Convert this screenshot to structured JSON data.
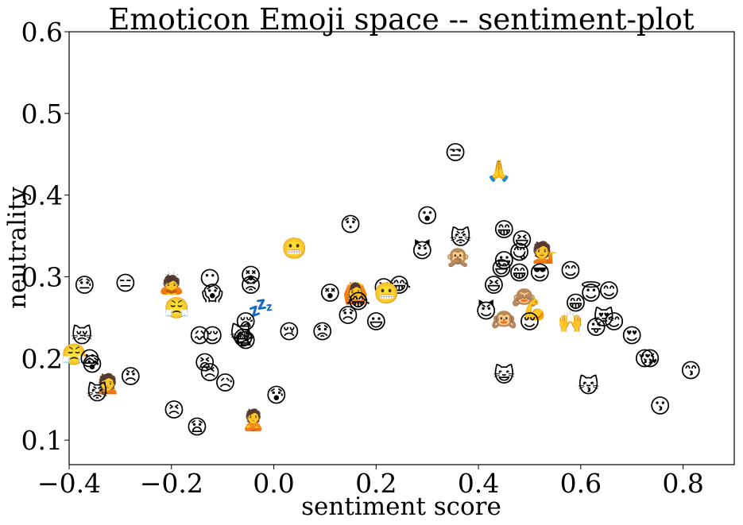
{
  "chart_data": {
    "type": "scatter",
    "title": "Emoticon Emoji space -- sentiment-plot",
    "xlabel": "sentiment score",
    "ylabel": "neutrality",
    "xlim": [
      -0.4,
      0.9
    ],
    "ylim": [
      0.07,
      0.6
    ],
    "xticks": [
      -0.4,
      -0.2,
      0.0,
      0.2,
      0.4,
      0.6,
      0.8
    ],
    "xtick_labels": [
      "−0.4",
      "−0.2",
      "0.0",
      "0.2",
      "0.4",
      "0.6",
      "0.8"
    ],
    "yticks": [
      0.1,
      0.2,
      0.3,
      0.4,
      0.5,
      0.6
    ],
    "ytick_labels": [
      "0.1",
      "0.2",
      "0.3",
      "0.4",
      "0.5",
      "0.6"
    ],
    "grid": false,
    "marker": "emoji",
    "points": [
      {
        "x": 0.355,
        "y": 0.452,
        "m": "😒"
      },
      {
        "x": 0.44,
        "y": 0.43,
        "m": "🙏"
      },
      {
        "x": 0.3,
        "y": 0.375,
        "m": "😮"
      },
      {
        "x": 0.15,
        "y": 0.364,
        "m": "😯"
      },
      {
        "x": 0.45,
        "y": 0.358,
        "m": "😁"
      },
      {
        "x": 0.485,
        "y": 0.345,
        "m": "😆"
      },
      {
        "x": 0.365,
        "y": 0.348,
        "m": "😾"
      },
      {
        "x": 0.04,
        "y": 0.335,
        "m": "😬"
      },
      {
        "x": 0.29,
        "y": 0.332,
        "m": "😈"
      },
      {
        "x": 0.48,
        "y": 0.33,
        "m": "😋"
      },
      {
        "x": 0.53,
        "y": 0.33,
        "m": "💁"
      },
      {
        "x": 0.36,
        "y": 0.325,
        "m": "🙊"
      },
      {
        "x": 0.45,
        "y": 0.32,
        "m": "😃"
      },
      {
        "x": 0.445,
        "y": 0.31,
        "m": "😄"
      },
      {
        "x": 0.58,
        "y": 0.308,
        "m": "😊"
      },
      {
        "x": 0.48,
        "y": 0.305,
        "m": "😁"
      },
      {
        "x": 0.52,
        "y": 0.305,
        "m": "😎"
      },
      {
        "x": -0.045,
        "y": 0.302,
        "m": "😵"
      },
      {
        "x": -0.125,
        "y": 0.298,
        "m": "😶"
      },
      {
        "x": -0.29,
        "y": 0.292,
        "m": "😑"
      },
      {
        "x": -0.37,
        "y": 0.29,
        "m": "😓"
      },
      {
        "x": -0.2,
        "y": 0.292,
        "m": "🙇"
      },
      {
        "x": -0.045,
        "y": 0.29,
        "m": "😟"
      },
      {
        "x": 0.245,
        "y": 0.29,
        "m": "😂"
      },
      {
        "x": 0.215,
        "y": 0.287,
        "m": "😆"
      },
      {
        "x": 0.43,
        "y": 0.29,
        "m": "😆"
      },
      {
        "x": 0.22,
        "y": 0.28,
        "m": "😬"
      },
      {
        "x": -0.12,
        "y": 0.28,
        "m": "😱"
      },
      {
        "x": 0.11,
        "y": 0.28,
        "m": "😵"
      },
      {
        "x": 0.16,
        "y": 0.28,
        "m": "🙆"
      },
      {
        "x": 0.62,
        "y": 0.28,
        "m": "😇"
      },
      {
        "x": 0.655,
        "y": 0.283,
        "m": "😊"
      },
      {
        "x": 0.49,
        "y": 0.275,
        "m": "🙈"
      },
      {
        "x": 0.59,
        "y": 0.268,
        "m": "😁"
      },
      {
        "x": 0.165,
        "y": 0.27,
        "m": "😂"
      },
      {
        "x": -0.19,
        "y": 0.262,
        "m": "😤"
      },
      {
        "x": 0.415,
        "y": 0.258,
        "m": "😈"
      },
      {
        "x": 0.51,
        "y": 0.26,
        "m": "💪"
      },
      {
        "x": -0.025,
        "y": 0.262,
        "m": "💤"
      },
      {
        "x": 0.145,
        "y": 0.253,
        "m": "😞"
      },
      {
        "x": 0.45,
        "y": 0.248,
        "m": "🙉"
      },
      {
        "x": 0.5,
        "y": 0.245,
        "m": "😌"
      },
      {
        "x": 0.2,
        "y": 0.245,
        "m": "😃"
      },
      {
        "x": 0.58,
        "y": 0.245,
        "m": "🙌"
      },
      {
        "x": 0.645,
        "y": 0.25,
        "m": "😻"
      },
      {
        "x": 0.665,
        "y": 0.245,
        "m": "😊"
      },
      {
        "x": 0.63,
        "y": 0.238,
        "m": "😜"
      },
      {
        "x": -0.055,
        "y": 0.245,
        "m": "😪"
      },
      {
        "x": 0.03,
        "y": 0.233,
        "m": "😢"
      },
      {
        "x": 0.095,
        "y": 0.233,
        "m": "😟"
      },
      {
        "x": -0.375,
        "y": 0.228,
        "m": "😿"
      },
      {
        "x": -0.145,
        "y": 0.228,
        "m": "😖"
      },
      {
        "x": -0.12,
        "y": 0.228,
        "m": "😌"
      },
      {
        "x": -0.065,
        "y": 0.23,
        "m": "🙀"
      },
      {
        "x": -0.06,
        "y": 0.225,
        "m": "😷"
      },
      {
        "x": -0.055,
        "y": 0.222,
        "m": "😨"
      },
      {
        "x": 0.7,
        "y": 0.228,
        "m": "😍"
      },
      {
        "x": -0.39,
        "y": 0.205,
        "m": "😤"
      },
      {
        "x": -0.36,
        "y": 0.2,
        "m": "😦"
      },
      {
        "x": -0.355,
        "y": 0.193,
        "m": "😰"
      },
      {
        "x": -0.135,
        "y": 0.195,
        "m": "😫"
      },
      {
        "x": 0.725,
        "y": 0.2,
        "m": "😚"
      },
      {
        "x": 0.735,
        "y": 0.2,
        "m": "😘"
      },
      {
        "x": -0.125,
        "y": 0.183,
        "m": "😣"
      },
      {
        "x": -0.095,
        "y": 0.17,
        "m": "😥"
      },
      {
        "x": -0.28,
        "y": 0.178,
        "m": "😠"
      },
      {
        "x": 0.45,
        "y": 0.18,
        "m": "😺"
      },
      {
        "x": 0.815,
        "y": 0.185,
        "m": "😙"
      },
      {
        "x": -0.325,
        "y": 0.17,
        "m": "🙍"
      },
      {
        "x": -0.345,
        "y": 0.158,
        "m": "😾"
      },
      {
        "x": 0.615,
        "y": 0.167,
        "m": "😽"
      },
      {
        "x": 0.005,
        "y": 0.155,
        "m": "😰"
      },
      {
        "x": -0.195,
        "y": 0.137,
        "m": "😣"
      },
      {
        "x": 0.755,
        "y": 0.142,
        "m": "😗"
      },
      {
        "x": -0.04,
        "y": 0.125,
        "m": "🙎"
      },
      {
        "x": -0.15,
        "y": 0.116,
        "m": "😧"
      }
    ]
  }
}
